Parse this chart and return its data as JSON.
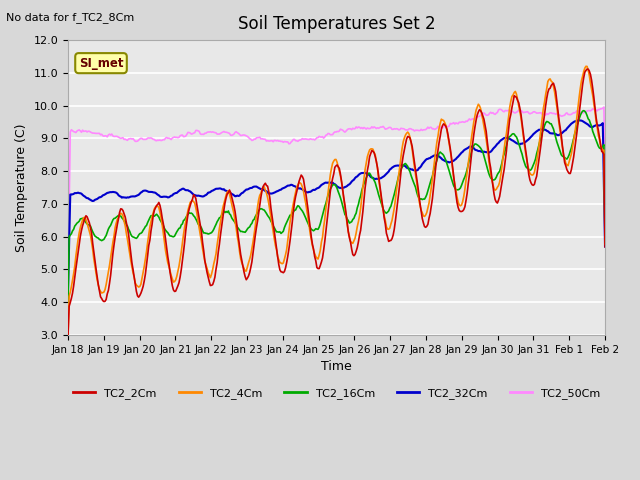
{
  "title": "Soil Temperatures Set 2",
  "subtitle": "No data for f_TC2_8Cm",
  "xlabel": "Time",
  "ylabel": "Soil Temperature (C)",
  "ylim": [
    3.0,
    12.0
  ],
  "yticks": [
    3.0,
    4.0,
    5.0,
    6.0,
    7.0,
    8.0,
    9.0,
    10.0,
    11.0,
    12.0
  ],
  "xtick_labels": [
    "Jan 18",
    "Jan 19",
    "Jan 20",
    "Jan 21",
    "Jan 22",
    "Jan 23",
    "Jan 24",
    "Jan 25",
    "Jan 26",
    "Jan 27",
    "Jan 28",
    "Jan 29",
    "Jan 30",
    "Jan 31",
    "Feb 1",
    "Feb 2"
  ],
  "xtick_positions": [
    0,
    1,
    2,
    3,
    4,
    5,
    6,
    7,
    8,
    9,
    10,
    11,
    12,
    13,
    14,
    15
  ],
  "series_colors": {
    "TC2_2Cm": "#cc0000",
    "TC2_4Cm": "#ff8800",
    "TC2_16Cm": "#00aa00",
    "TC2_32Cm": "#0000cc",
    "TC2_50Cm": "#ff88ff"
  },
  "legend_label": "SI_met",
  "legend_box_color": "#ffffaa",
  "legend_box_border": "#888800",
  "plot_bg_color": "#e8e8e8",
  "grid_color": "#ffffff",
  "fig_bg_color": "#d8d8d8"
}
